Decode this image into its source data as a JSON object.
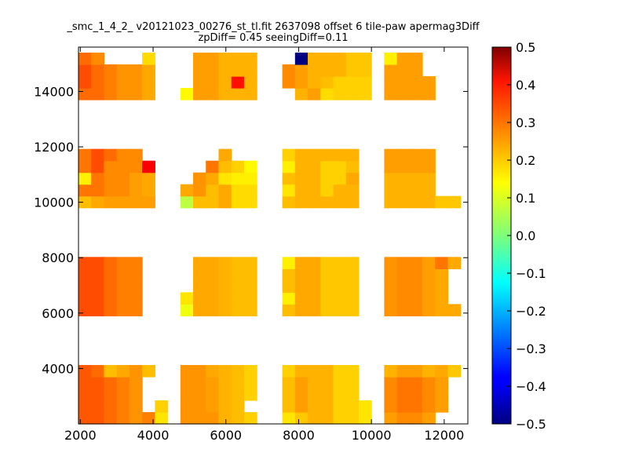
{
  "chart_data": {
    "type": "heatmap",
    "title": "_smc_1_4_2_ v20121023_00276_st_tl.fit 2637098 offset 6 tile-paw apermag3Diff",
    "subtitle": "zpDiff= 0.45 seeingDiff=0.11",
    "xlabel": "",
    "ylabel": "",
    "xlim": [
      1950,
      12650
    ],
    "ylim": [
      2000,
      15600
    ],
    "xticks": [
      2000,
      4000,
      6000,
      8000,
      10000,
      12000
    ],
    "yticks": [
      4000,
      6000,
      8000,
      10000,
      12000,
      14000
    ],
    "colorbar": {
      "vmin": -0.5,
      "vmax": 0.5,
      "ticks": [
        "0.5",
        "0.4",
        "0.3",
        "0.2",
        "0.1",
        "0.0",
        "−0.1",
        "−0.2",
        "−0.3",
        "−0.4",
        "−0.5"
      ],
      "tick_values": [
        0.5,
        0.4,
        0.3,
        0.2,
        0.1,
        0.0,
        -0.1,
        -0.2,
        -0.3,
        -0.4,
        -0.5
      ],
      "colormap": "jet"
    },
    "grid": false,
    "cell_size": [
      350,
      425
    ],
    "column_x": [
      2125,
      2475,
      2825,
      3175,
      3525,
      3875,
      4225,
      4925,
      5275,
      5625,
      5975,
      6325,
      6675,
      7725,
      8075,
      8425,
      8775,
      9125,
      9475,
      9825,
      10525,
      10875,
      11225,
      11575,
      11925,
      12275
    ],
    "row_groups_y": [
      [
        2213,
        2638,
        3063,
        3488,
        3913
      ],
      [
        6113,
        6538,
        6963,
        7388,
        7813
      ],
      [
        10013,
        10438,
        10863,
        11288,
        11713
      ],
      [
        13913,
        14338,
        14763,
        15188
      ]
    ],
    "cells": [
      [
        "a",
        [
          [
            0.29,
            0.29,
            0.27,
            0.25,
            0.23,
            0.25,
            0.15
          ],
          [
            0.29,
            0.29,
            0.27,
            0.25,
            0.23,
            null,
            0.17
          ],
          [
            0.29,
            0.29,
            0.27,
            0.25,
            0.23,
            null,
            null
          ],
          [
            0.29,
            0.29,
            0.27,
            0.25,
            0.23,
            null,
            null
          ],
          [
            0.29,
            0.27,
            0.19,
            0.21,
            0.23,
            0.19,
            null
          ]
        ]
      ],
      [
        "b",
        [
          [
            0.23,
            0.23,
            0.23,
            0.2,
            0.19,
            0.17
          ],
          [
            0.23,
            0.23,
            0.22,
            0.2,
            0.19,
            null
          ],
          [
            0.23,
            0.23,
            0.22,
            0.2,
            0.19,
            0.17
          ],
          [
            0.23,
            0.23,
            0.22,
            0.2,
            0.19,
            0.17
          ],
          [
            0.23,
            0.23,
            0.21,
            0.2,
            0.19,
            0.17
          ]
        ]
      ],
      [
        "c",
        [
          [
            0.15,
            0.18,
            0.2,
            0.2,
            0.17,
            0.17,
            0.15
          ],
          [
            0.19,
            0.22,
            0.2,
            0.2,
            0.17,
            0.17,
            0.15
          ],
          [
            0.19,
            0.22,
            0.2,
            0.2,
            0.17,
            0.17,
            null
          ],
          [
            0.19,
            0.22,
            0.2,
            0.2,
            0.17,
            0.17,
            null
          ],
          [
            0.17,
            0.2,
            0.2,
            0.2,
            0.17,
            0.17,
            null
          ]
        ]
      ],
      [
        "d",
        [
          [
            0.22,
            0.24,
            0.24,
            0.22,
            null,
            null
          ],
          [
            0.24,
            0.26,
            0.26,
            0.24,
            0.22,
            null
          ],
          [
            0.24,
            0.26,
            0.26,
            0.24,
            0.22,
            null
          ],
          [
            0.24,
            0.26,
            0.26,
            0.24,
            0.22,
            null
          ],
          [
            0.2,
            0.22,
            0.22,
            0.2,
            0.21,
            0.18
          ]
        ]
      ],
      [
        "a",
        [
          [
            0.3,
            0.3,
            0.27,
            0.25,
            0.25,
            null,
            null
          ],
          [
            0.3,
            0.3,
            0.27,
            0.25,
            0.25,
            null,
            null
          ],
          [
            0.3,
            0.3,
            0.27,
            0.25,
            0.25,
            null,
            null
          ],
          [
            0.3,
            0.3,
            0.27,
            0.25,
            0.25,
            null,
            null
          ],
          [
            0.3,
            0.3,
            0.27,
            0.25,
            0.25,
            null,
            null
          ]
        ]
      ],
      [
        "b",
        [
          [
            0.11,
            0.21,
            0.21,
            0.2,
            0.19,
            0.19
          ],
          [
            0.15,
            0.21,
            0.21,
            0.2,
            0.19,
            0.19
          ],
          [
            null,
            0.21,
            0.21,
            0.2,
            0.19,
            0.19
          ],
          [
            null,
            0.21,
            0.21,
            0.2,
            0.19,
            0.19
          ],
          [
            null,
            0.21,
            0.21,
            0.2,
            0.19,
            0.19
          ]
        ]
      ],
      [
        "c",
        [
          [
            0.19,
            0.21,
            0.21,
            0.18,
            0.18,
            0.18,
            null
          ],
          [
            0.14,
            0.21,
            0.21,
            0.18,
            0.18,
            0.18,
            null
          ],
          [
            0.19,
            0.21,
            0.21,
            0.18,
            0.18,
            0.18,
            null
          ],
          [
            0.19,
            0.21,
            0.21,
            0.18,
            0.18,
            0.18,
            null
          ],
          [
            0.14,
            0.21,
            0.21,
            0.18,
            0.18,
            0.18,
            null
          ]
        ]
      ],
      [
        "d",
        [
          [
            0.23,
            0.24,
            0.24,
            0.22,
            0.21,
            0.21
          ],
          [
            0.23,
            0.24,
            0.24,
            0.22,
            0.21,
            null
          ],
          [
            0.23,
            0.24,
            0.24,
            0.22,
            0.21,
            null
          ],
          [
            0.23,
            0.24,
            0.24,
            0.22,
            0.21,
            null
          ],
          [
            0.23,
            0.24,
            0.24,
            0.22,
            0.26,
            0.21
          ]
        ]
      ],
      [
        "a",
        [
          [
            0.19,
            0.21,
            0.22,
            0.22,
            0.22,
            0.22,
            null
          ],
          [
            0.26,
            0.26,
            0.24,
            0.24,
            0.22,
            0.21,
            null
          ],
          [
            0.14,
            0.26,
            0.24,
            0.24,
            0.22,
            0.21,
            null
          ],
          [
            0.26,
            0.3,
            0.24,
            0.24,
            0.24,
            0.38,
            null
          ],
          [
            0.26,
            0.3,
            0.27,
            0.24,
            0.24,
            null,
            null
          ]
        ]
      ],
      [
        "b",
        [
          [
            0.06,
            0.19,
            0.19,
            0.21,
            0.16,
            0.16
          ],
          [
            0.21,
            0.23,
            0.19,
            0.21,
            0.16,
            0.16
          ],
          [
            null,
            0.23,
            0.21,
            0.15,
            0.14,
            0.14
          ],
          [
            null,
            null,
            0.26,
            0.19,
            0.17,
            0.13
          ],
          [
            null,
            null,
            null,
            0.21,
            null,
            null
          ]
        ]
      ],
      [
        "c",
        [
          [
            0.19,
            0.2,
            0.2,
            0.2,
            0.2,
            0.2,
            null
          ],
          [
            0.15,
            0.2,
            0.2,
            0.17,
            0.2,
            0.2,
            null
          ],
          [
            0.19,
            0.2,
            0.2,
            0.17,
            0.17,
            0.21,
            null
          ],
          [
            0.14,
            0.2,
            0.2,
            0.17,
            0.17,
            0.19,
            null
          ],
          [
            0.17,
            0.2,
            0.2,
            0.2,
            0.2,
            0.2,
            null
          ]
        ]
      ],
      [
        "d",
        [
          [
            0.2,
            0.2,
            0.2,
            0.2,
            0.18,
            0.18
          ],
          [
            0.2,
            0.2,
            0.2,
            0.2,
            null,
            null
          ],
          [
            0.2,
            0.2,
            0.2,
            0.2,
            null,
            null
          ],
          [
            0.22,
            0.22,
            0.22,
            0.22,
            null,
            null
          ],
          [
            0.22,
            0.22,
            0.22,
            0.22,
            null,
            null
          ]
        ]
      ],
      [
        "a",
        [
          [
            0.27,
            0.27,
            0.25,
            0.23,
            0.23,
            0.21,
            null
          ],
          [
            0.3,
            0.27,
            0.25,
            0.23,
            0.23,
            0.21,
            null
          ],
          [
            0.3,
            0.27,
            0.25,
            0.23,
            0.23,
            0.21,
            null
          ],
          [
            0.27,
            0.24,
            null,
            null,
            null,
            0.16,
            null
          ]
        ]
      ],
      [
        "b",
        [
          [
            0.13,
            0.22,
            0.22,
            0.2,
            0.2,
            0.2
          ],
          [
            null,
            0.22,
            0.22,
            0.2,
            0.36,
            0.2
          ],
          [
            null,
            0.22,
            0.22,
            0.2,
            0.2,
            0.2
          ],
          [
            null,
            0.22,
            0.22,
            0.2,
            0.2,
            0.2
          ]
        ]
      ],
      [
        "c",
        [
          [
            null,
            0.2,
            0.22,
            0.16,
            0.17,
            0.17,
            0.17
          ],
          [
            0.24,
            0.22,
            0.2,
            0.19,
            0.17,
            0.17,
            0.17
          ],
          [
            0.24,
            0.22,
            0.2,
            0.2,
            0.2,
            0.18,
            0.18
          ],
          [
            null,
            -0.5,
            0.2,
            0.2,
            0.2,
            0.18,
            0.18
          ]
        ]
      ],
      [
        "d",
        [
          [
            0.22,
            0.22,
            0.22,
            0.22,
            null,
            null
          ],
          [
            0.22,
            0.22,
            0.22,
            0.22,
            null,
            null
          ],
          [
            0.22,
            0.22,
            0.22,
            null,
            null,
            null
          ],
          [
            0.14,
            0.22,
            0.22,
            null,
            null,
            null
          ]
        ]
      ]
    ]
  }
}
